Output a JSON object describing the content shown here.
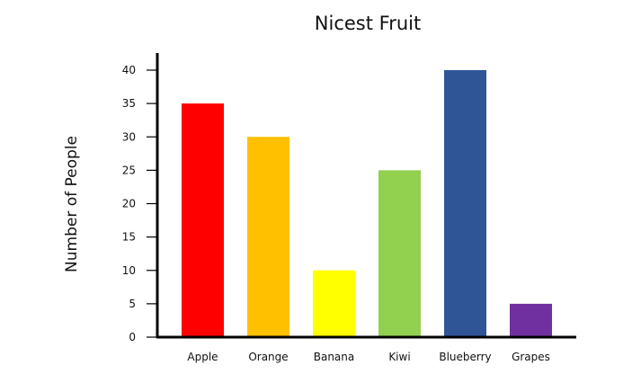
{
  "chart_data": {
    "type": "bar",
    "title": "Nicest Fruit",
    "xlabel": "",
    "ylabel": "Number of People",
    "ylim": [
      0,
      40
    ],
    "yticks": [
      0,
      5,
      10,
      15,
      20,
      25,
      30,
      35,
      40
    ],
    "grid": false,
    "categories": [
      "Apple",
      "Orange",
      "Banana",
      "Kiwi",
      "Blueberry",
      "Grapes"
    ],
    "values": [
      35,
      30,
      10,
      25,
      40,
      5
    ],
    "colors": [
      "#ff0000",
      "#ffc000",
      "#ffff00",
      "#92d050",
      "#2f5597",
      "#7030a0"
    ]
  }
}
